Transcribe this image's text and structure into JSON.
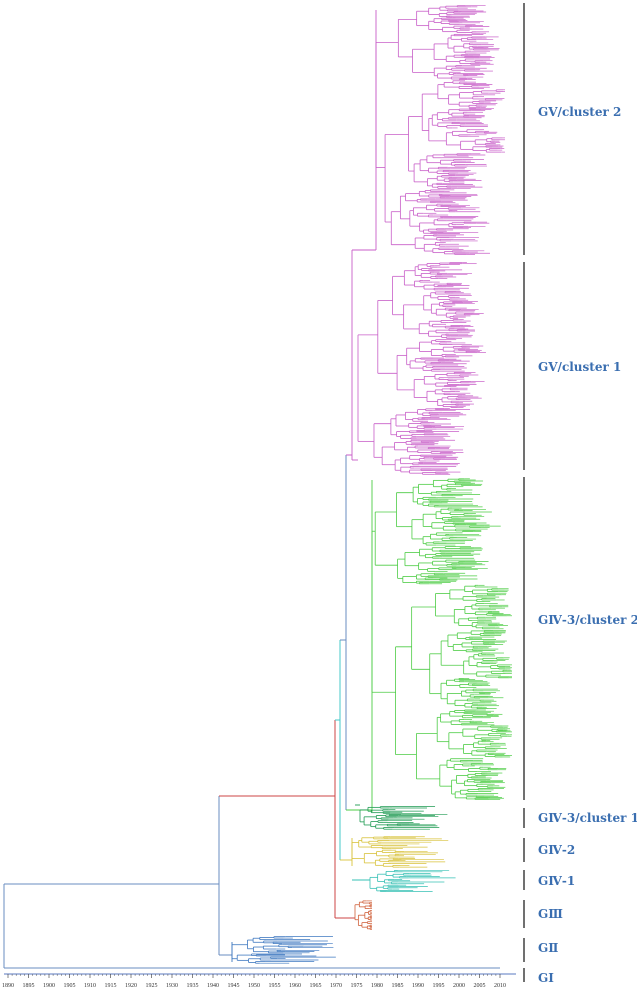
{
  "colors": {
    "gv": "#c85ec8",
    "giv3": "#4ccc44",
    "giv3_c1": "#1e9a52",
    "giv2": "#d8c23a",
    "giv1": "#36c0b4",
    "giii": "#d0603a",
    "gii": "#3e78c0",
    "gi": "#5a78c0",
    "backbone": "#6a8cc0",
    "red_branch": "#cc4444",
    "cyan_branch": "#44c8c8",
    "label": "#3a6eb0",
    "bracket": "#333333",
    "axis": "#333333"
  },
  "axis": {
    "ticks": [
      "1890",
      "1895",
      "1900",
      "1905",
      "1910",
      "1915",
      "1920",
      "1925",
      "1930",
      "1935",
      "1940",
      "1945",
      "1950",
      "1955",
      "1960",
      "1965",
      "1970",
      "1975",
      "1980",
      "1985",
      "1990",
      "1995",
      "2000",
      "2005",
      "2010"
    ]
  },
  "clades": [
    {
      "key": "gv_c2",
      "label": "GⅤ/cluster 2"
    },
    {
      "key": "gv_c1",
      "label": "GⅤ/cluster 1"
    },
    {
      "key": "giv3_c2",
      "label": "GⅣ-3/cluster 2"
    },
    {
      "key": "giv3_c1",
      "label": "GⅣ-3/cluster 1"
    },
    {
      "key": "giv2",
      "label": "GⅣ-2"
    },
    {
      "key": "giv1",
      "label": "GⅣ-1"
    },
    {
      "key": "giii",
      "label": "GⅢ"
    },
    {
      "key": "gii",
      "label": "GⅡ"
    },
    {
      "key": "gi",
      "label": "GⅠ"
    }
  ]
}
